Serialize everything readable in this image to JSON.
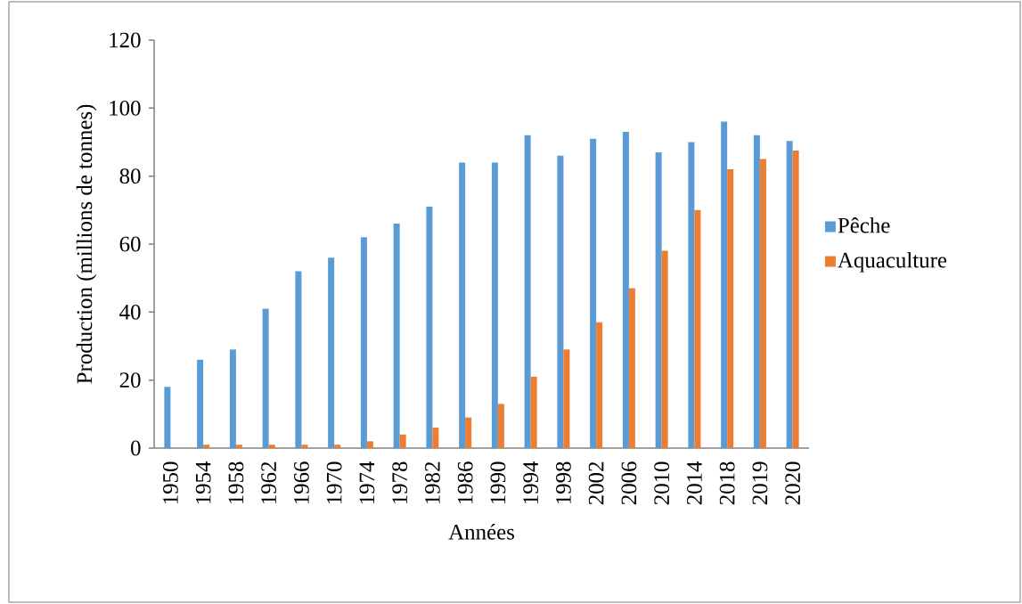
{
  "chart_data": {
    "type": "bar",
    "xlabel": "Années",
    "ylabel": "Production (millions de tonnes)",
    "categories": [
      "1950",
      "1954",
      "1958",
      "1962",
      "1966",
      "1970",
      "1974",
      "1978",
      "1982",
      "1986",
      "1990",
      "1994",
      "1998",
      "2002",
      "2006",
      "2010",
      "2014",
      "2018",
      "2019",
      "2020"
    ],
    "series": [
      {
        "name": "Pêche",
        "color": "#5b9bd5",
        "values": [
          18,
          26,
          29,
          41,
          52,
          56,
          62,
          66,
          71,
          84,
          84,
          92,
          86,
          91,
          93,
          87,
          90,
          96,
          92,
          90.3
        ]
      },
      {
        "name": "Aquaculture",
        "color": "#ed7d31",
        "values": [
          0,
          1,
          1,
          1,
          1,
          1,
          2,
          4,
          6,
          9,
          13,
          21,
          29,
          37,
          47,
          58,
          70,
          82,
          85,
          87.5
        ]
      }
    ],
    "ylim": [
      0,
      120
    ],
    "yticks": [
      0,
      20,
      40,
      60,
      80,
      100,
      120
    ],
    "legend": "right"
  }
}
